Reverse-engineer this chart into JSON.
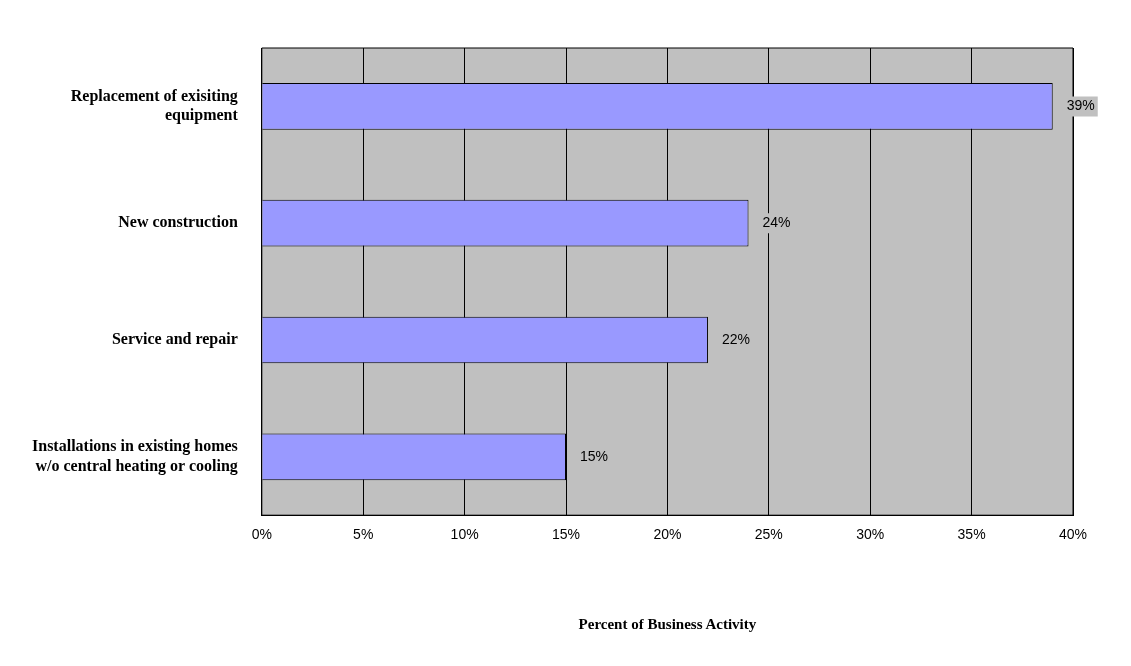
{
  "chart_data": {
    "type": "bar",
    "orientation": "horizontal",
    "xlabel": "Percent of Business Activity",
    "categories": [
      "Replacement of exisiting equipment",
      "New construction",
      "Service and repair",
      "Installations in existing homes w/o central heating or cooling"
    ],
    "values": [
      39,
      24,
      22,
      15
    ],
    "color": "#9999ff",
    "value_labels": [
      "39%",
      "24%",
      "22%",
      "15%"
    ],
    "xlim": [
      0,
      40
    ],
    "xticks": [
      {
        "value": 0,
        "label": "0%"
      },
      {
        "value": 5,
        "label": "5%"
      },
      {
        "value": 10,
        "label": "10%"
      },
      {
        "value": 15,
        "label": "15%"
      },
      {
        "value": 20,
        "label": "20%"
      },
      {
        "value": 25,
        "label": "25%"
      },
      {
        "value": 30,
        "label": "30%"
      },
      {
        "value": 35,
        "label": "35%"
      },
      {
        "value": 40,
        "label": "40%"
      }
    ],
    "grid": "x",
    "legend": false
  }
}
